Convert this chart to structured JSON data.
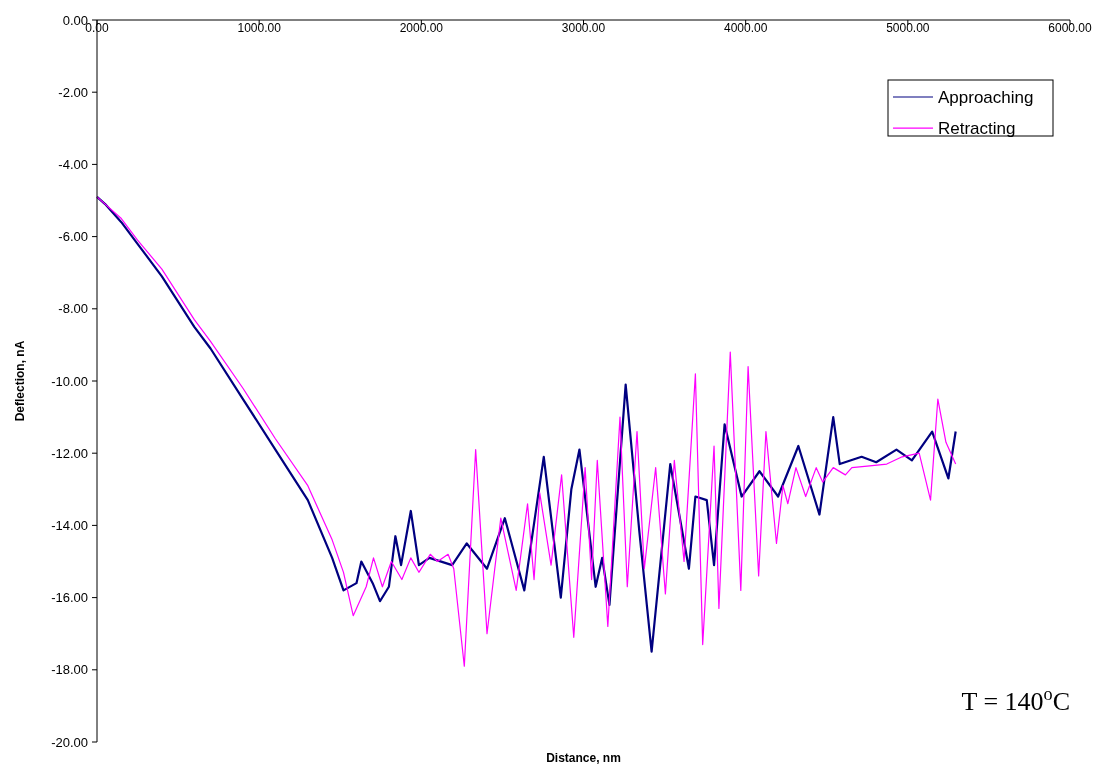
{
  "chart_data": {
    "type": "line",
    "xlabel": "Distance, nm",
    "ylabel": "Deflection, nA",
    "xlim": [
      0,
      6000
    ],
    "ylim": [
      -20,
      0
    ],
    "xticks": [
      {
        "value": 0,
        "label": "0.00"
      },
      {
        "value": 1000,
        "label": "1000.00"
      },
      {
        "value": 2000,
        "label": "2000.00"
      },
      {
        "value": 3000,
        "label": "3000.00"
      },
      {
        "value": 4000,
        "label": "4000.00"
      },
      {
        "value": 5000,
        "label": "5000.00"
      },
      {
        "value": 6000,
        "label": "6000.00"
      }
    ],
    "yticks": [
      {
        "value": 0,
        "label": "0.00"
      },
      {
        "value": -2,
        "label": "-2.00"
      },
      {
        "value": -4,
        "label": "-4.00"
      },
      {
        "value": -6,
        "label": "-6.00"
      },
      {
        "value": -8,
        "label": "-8.00"
      },
      {
        "value": -10,
        "label": "-10.00"
      },
      {
        "value": -12,
        "label": "-12.00"
      },
      {
        "value": -14,
        "label": "-14.00"
      },
      {
        "value": -16,
        "label": "-16.00"
      },
      {
        "value": -18,
        "label": "-18.00"
      },
      {
        "value": -20,
        "label": "-20.00"
      }
    ],
    "grid": false,
    "legend": "top right",
    "marker": "none",
    "line_style": "solid",
    "annotations": [
      "T = 140$^{o}$C"
    ],
    "series": [
      {
        "name": "Approaching",
        "color": "#000080",
        "x": [
          0,
          50,
          150,
          250,
          400,
          600,
          700,
          900,
          1100,
          1300,
          1450,
          1520,
          1600,
          1630,
          1700,
          1745,
          1800,
          1840,
          1875,
          1935,
          1985,
          2050,
          2190,
          2280,
          2405,
          2515,
          2635,
          2755,
          2860,
          2925,
          2975,
          3075,
          3115,
          3160,
          3260,
          3345,
          3420,
          3535,
          3650,
          3690,
          3760,
          3805,
          3870,
          3975,
          4085,
          4200,
          4325,
          4455,
          4540,
          4580,
          4715,
          4805,
          4930,
          5025,
          5150,
          5250,
          5295
        ],
        "values": [
          -4.9,
          -5.1,
          -5.6,
          -6.2,
          -7.1,
          -8.5,
          -9.1,
          -10.5,
          -11.9,
          -13.3,
          -14.9,
          -15.8,
          -15.6,
          -15.0,
          -15.6,
          -16.1,
          -15.7,
          -14.3,
          -15.1,
          -13.6,
          -15.1,
          -14.9,
          -15.1,
          -14.5,
          -15.2,
          -13.8,
          -15.8,
          -12.1,
          -16.0,
          -13.0,
          -11.9,
          -15.7,
          -14.9,
          -16.2,
          -10.1,
          -14.2,
          -17.5,
          -12.3,
          -15.2,
          -13.2,
          -13.3,
          -15.1,
          -11.2,
          -13.2,
          -12.5,
          -13.2,
          -11.8,
          -13.7,
          -11.0,
          -12.3,
          -12.1,
          -12.25,
          -11.9,
          -12.2,
          -11.4,
          -12.7,
          -11.4
        ]
      },
      {
        "name": "Retracting",
        "color": "#ff00ff",
        "x": [
          0,
          50,
          150,
          250,
          400,
          600,
          700,
          900,
          1100,
          1300,
          1450,
          1520,
          1580,
          1660,
          1705,
          1760,
          1815,
          1880,
          1935,
          1985,
          2055,
          2100,
          2165,
          2200,
          2265,
          2335,
          2405,
          2490,
          2585,
          2655,
          2695,
          2730,
          2800,
          2865,
          2940,
          3010,
          3050,
          3085,
          3150,
          3225,
          3270,
          3330,
          3375,
          3445,
          3505,
          3560,
          3620,
          3690,
          3735,
          3805,
          3835,
          3905,
          3970,
          4015,
          4080,
          4125,
          4190,
          4230,
          4260,
          4310,
          4370,
          4435,
          4475,
          4540,
          4615,
          4655,
          4765,
          4870,
          4965,
          5070,
          5140,
          5185,
          5235,
          5295
        ],
        "values": [
          -4.9,
          -5.1,
          -5.5,
          -6.1,
          -6.9,
          -8.3,
          -8.9,
          -10.2,
          -11.6,
          -12.9,
          -14.4,
          -15.3,
          -16.5,
          -15.7,
          -14.9,
          -15.7,
          -15.0,
          -15.5,
          -14.9,
          -15.3,
          -14.8,
          -15.0,
          -14.8,
          -15.2,
          -17.9,
          -11.9,
          -17.0,
          -13.8,
          -15.8,
          -13.4,
          -15.5,
          -13.1,
          -15.1,
          -12.6,
          -17.1,
          -12.4,
          -15.5,
          -12.2,
          -16.8,
          -11.0,
          -15.7,
          -11.4,
          -15.2,
          -12.4,
          -15.9,
          -12.2,
          -15.0,
          -9.8,
          -17.3,
          -11.8,
          -16.3,
          -9.2,
          -15.8,
          -9.6,
          -15.4,
          -11.4,
          -14.5,
          -12.9,
          -13.4,
          -12.4,
          -13.2,
          -12.4,
          -12.8,
          -12.4,
          -12.6,
          -12.4,
          -12.35,
          -12.3,
          -12.1,
          -12.0,
          -13.3,
          -10.5,
          -11.7,
          -12.3
        ]
      }
    ]
  }
}
